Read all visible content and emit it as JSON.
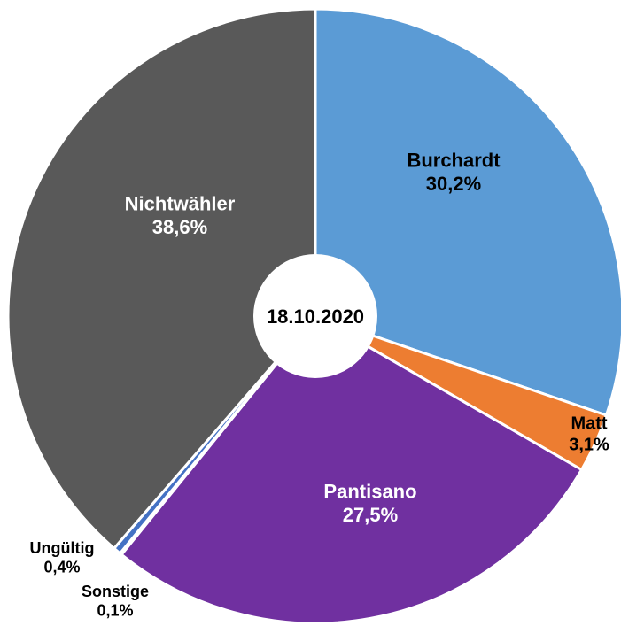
{
  "chart_data": {
    "type": "donut",
    "title": "18.10.2020",
    "categories": [
      "Burchardt",
      "Matt",
      "Pantisano",
      "Sonstige",
      "Ungültig",
      "Nichtwähler"
    ],
    "values": [
      30.2,
      3.1,
      27.5,
      0.1,
      0.4,
      38.6
    ],
    "value_labels": [
      "30,2%",
      "3,1%",
      "27,5%",
      "0,1%",
      "0,4%",
      "38,6%"
    ],
    "colors": [
      "#5b9bd5",
      "#ed7d31",
      "#7030a0",
      "#a5a5a5",
      "#4472c4",
      "#595959"
    ]
  }
}
